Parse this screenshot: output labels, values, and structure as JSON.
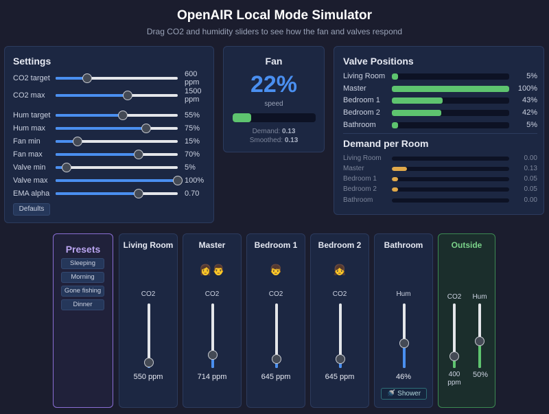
{
  "header": {
    "title": "OpenAIR Local Mode Simulator",
    "subtitle": "Drag CO2 and humidity sliders to see how the fan and valves respond"
  },
  "settings": {
    "title": "Settings",
    "defaults_label": "Defaults",
    "rows": [
      {
        "label": "CO2 target",
        "value": "600 ppm",
        "level": 0.26
      },
      {
        "label": "CO2 max",
        "value": "1500 ppm",
        "level": 0.59
      },
      {
        "label": "Hum target",
        "value": "55%",
        "level": 0.55
      },
      {
        "label": "Hum max",
        "value": "75%",
        "level": 0.74
      },
      {
        "label": "Fan min",
        "value": "15%",
        "level": 0.18
      },
      {
        "label": "Fan max",
        "value": "70%",
        "level": 0.68
      },
      {
        "label": "Valve min",
        "value": "5%",
        "level": 0.09
      },
      {
        "label": "Valve max",
        "value": "100%",
        "level": 1.0
      },
      {
        "label": "EMA alpha",
        "value": "0.70",
        "level": 0.68
      }
    ]
  },
  "fan": {
    "title": "Fan",
    "percent": "22%",
    "speed_label": "speed",
    "level": 0.22,
    "demand_label": "Demand:",
    "demand_value": "0.13",
    "smoothed_label": "Smoothed:",
    "smoothed_value": "0.13"
  },
  "valves": {
    "title": "Valve Positions",
    "rows": [
      {
        "label": "Living Room",
        "value": "5%",
        "level": 0.05
      },
      {
        "label": "Master",
        "value": "100%",
        "level": 1.0
      },
      {
        "label": "Bedroom 1",
        "value": "43%",
        "level": 0.43
      },
      {
        "label": "Bedroom 2",
        "value": "42%",
        "level": 0.42
      },
      {
        "label": "Bathroom",
        "value": "5%",
        "level": 0.05
      }
    ]
  },
  "demand": {
    "title": "Demand per Room",
    "rows": [
      {
        "label": "Living Room",
        "value": "0.00",
        "level": 0.0
      },
      {
        "label": "Master",
        "value": "0.13",
        "level": 0.13
      },
      {
        "label": "Bedroom 1",
        "value": "0.05",
        "level": 0.05
      },
      {
        "label": "Bedroom 2",
        "value": "0.05",
        "level": 0.05
      },
      {
        "label": "Bathroom",
        "value": "0.00",
        "level": 0.0
      }
    ]
  },
  "presets": {
    "title": "Presets",
    "items": [
      "Sleeping",
      "Morning",
      "Gone fishing",
      "Dinner"
    ]
  },
  "rooms": [
    {
      "name": "Living Room",
      "emoji": "",
      "slider_label": "CO2",
      "value": "550 ppm",
      "level": 0.09
    },
    {
      "name": "Master",
      "emoji": "👩👨",
      "slider_label": "CO2",
      "value": "714 ppm",
      "level": 0.2
    },
    {
      "name": "Bedroom 1",
      "emoji": "👦",
      "slider_label": "CO2",
      "value": "645 ppm",
      "level": 0.14
    },
    {
      "name": "Bedroom 2",
      "emoji": "👧",
      "slider_label": "CO2",
      "value": "645 ppm",
      "level": 0.14
    },
    {
      "name": "Bathroom",
      "emoji": "",
      "slider_label": "Hum",
      "value": "46%",
      "level": 0.38,
      "button": "🚿 Shower"
    }
  ],
  "outside": {
    "name": "Outside",
    "co2_label": "CO2",
    "co2_value": "400 ppm",
    "co2_level": 0.18,
    "hum_label": "Hum",
    "hum_value": "50%",
    "hum_level": 0.42
  },
  "colors": {
    "accent_blue": "#4a8ff0",
    "valve_green": "#5ec46f",
    "demand_amber": "#e0a94a",
    "preset_purple": "#8b6fd6",
    "outside_green": "#7bd38a"
  }
}
